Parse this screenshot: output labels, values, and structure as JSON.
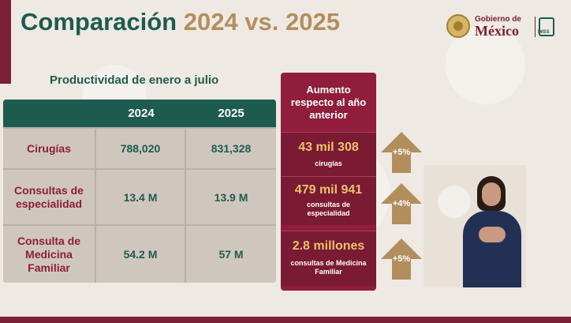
{
  "title": {
    "part1": "Comparación",
    "part2": "2024 vs. 2025"
  },
  "logo": {
    "line1": "Gobierno de",
    "line2": "México",
    "imss": "IMSS"
  },
  "subtitle": "Productividad de enero a julio",
  "table": {
    "headers": [
      "",
      "2024",
      "2025"
    ],
    "rows": [
      {
        "label": "Cirugías",
        "v2024": "788,020",
        "v2025": "831,328"
      },
      {
        "label": "Consultas de especialidad",
        "v2024": "13.4 M",
        "v2025": "13.9 M"
      },
      {
        "label": "Consulta de Medicina Familiar",
        "v2024": "54.2 M",
        "v2025": "57 M"
      }
    ]
  },
  "increase": {
    "header": "Aumento respecto al año anterior",
    "items": [
      {
        "value": "43 mil 308",
        "caption": "cirugías",
        "pct": "+5%"
      },
      {
        "value": "479 mil 941",
        "caption": "consultas de especialidad",
        "pct": "+4%"
      },
      {
        "value": "2.8 millones",
        "caption": "consultas de Medicina Familiar",
        "pct": "+5%"
      }
    ]
  },
  "colors": {
    "green": "#1e5b4f",
    "gold": "#b38e5d",
    "guinda": "#8f1d3b"
  }
}
